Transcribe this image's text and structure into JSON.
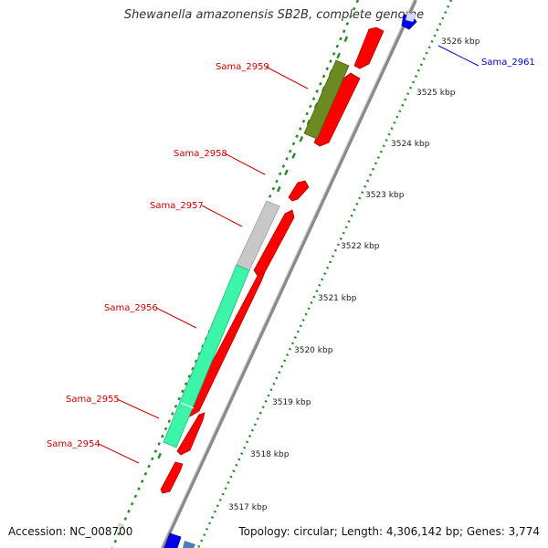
{
  "title": "Shewanella amazonensis SB2B, complete genome",
  "footer": {
    "accession": "Accession: NC_008700",
    "summary": "Topology: circular; Length: 4,306,142 bp; Genes: 3,774"
  },
  "colors": {
    "cds_red": "#ff0000",
    "olive": "#6b8a22",
    "grey_feature": "#c8c8c8",
    "mint": "#3cf5a8",
    "blue": "#0000ee",
    "tick_green": "#2a8a2a",
    "backbone": "#8a8a8a",
    "label_red": "#cc0000",
    "label_blue": "#0000cc"
  },
  "scale_labels": [
    "3526 kbp",
    "3525 kbp",
    "3524 kbp",
    "3523 kbp",
    "3522 kbp",
    "3521 kbp",
    "3520 kbp",
    "3519 kbp",
    "3518 kbp",
    "3517 kbp"
  ],
  "gene_labels": [
    "Sama_2959",
    "Sama_2958",
    "Sama_2957",
    "Sama_2956",
    "Sama_2955",
    "Sama_2954",
    "Sama_2961"
  ]
}
